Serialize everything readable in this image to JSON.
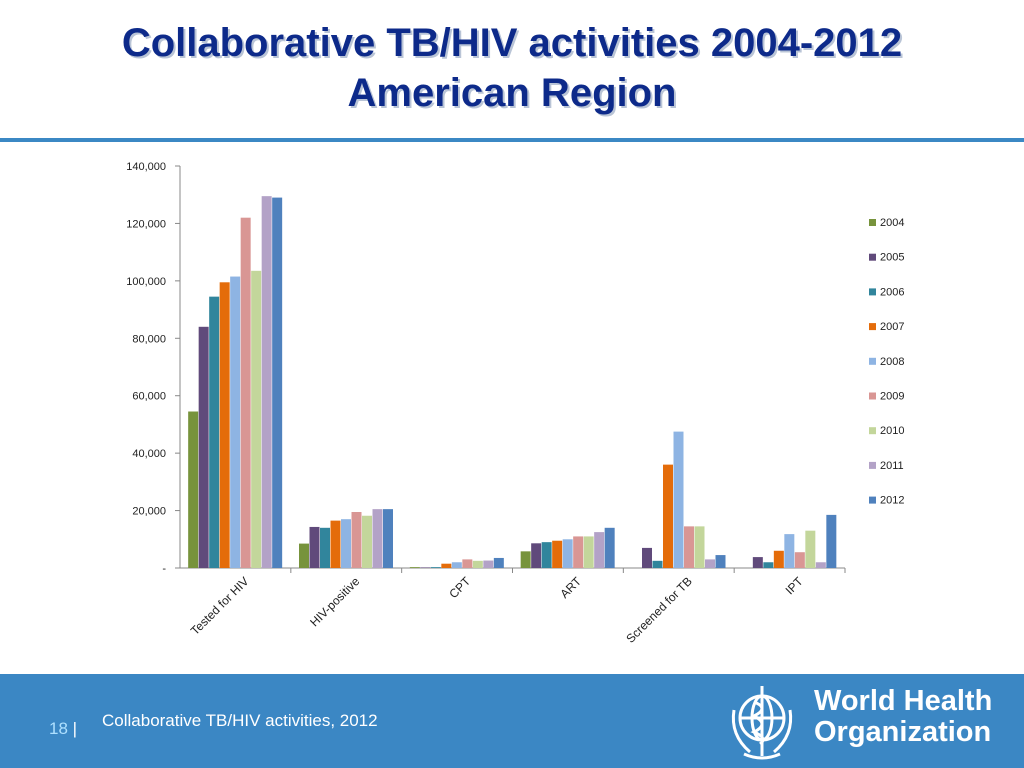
{
  "slide": {
    "title_line1": "Collaborative TB/HIV activities 2004-2012",
    "title_line2": "American Region"
  },
  "footer": {
    "page_number": "18",
    "separator": "|",
    "text": "Collaborative TB/HIV activities, 2012",
    "org_line1": "World Health",
    "org_line2": "Organization",
    "colors": {
      "band": "#3b87c4"
    }
  },
  "chart_data": {
    "type": "bar",
    "title": "",
    "xlabel": "",
    "ylabel": "",
    "ylim": [
      0,
      140000
    ],
    "y_ticks": [
      0,
      20000,
      40000,
      60000,
      80000,
      100000,
      120000,
      140000
    ],
    "y_tick_labels": [
      "-",
      "20,000",
      "40,000",
      "60,000",
      "80,000",
      "100,000",
      "120,000",
      "140,000"
    ],
    "grid": false,
    "legend_position": "right",
    "categories": [
      "Tested for HIV",
      "HIV-positive",
      "CPT",
      "ART",
      "Screened for TB",
      "IPT"
    ],
    "series": [
      {
        "name": "2004",
        "color": "#77933c",
        "values": [
          54500,
          8500,
          300,
          5800,
          0,
          0
        ]
      },
      {
        "name": "2005",
        "color": "#604a7b",
        "values": [
          84000,
          14300,
          200,
          8600,
          7000,
          3800
        ]
      },
      {
        "name": "2006",
        "color": "#31859c",
        "values": [
          94500,
          14000,
          300,
          9000,
          2500,
          2000
        ]
      },
      {
        "name": "2007",
        "color": "#e46c0a",
        "values": [
          99500,
          16500,
          1500,
          9500,
          36000,
          6000
        ]
      },
      {
        "name": "2008",
        "color": "#8eb4e3",
        "values": [
          101500,
          17000,
          2000,
          10000,
          47500,
          11800
        ]
      },
      {
        "name": "2009",
        "color": "#d99694",
        "values": [
          122000,
          19500,
          3000,
          11000,
          14500,
          5500
        ]
      },
      {
        "name": "2010",
        "color": "#c3d69b",
        "values": [
          103500,
          18200,
          2500,
          11000,
          14500,
          13000
        ]
      },
      {
        "name": "2011",
        "color": "#b3a2c7",
        "values": [
          129500,
          20500,
          2600,
          12500,
          3000,
          2000
        ]
      },
      {
        "name": "2012",
        "color": "#4f81bd",
        "values": [
          129000,
          20500,
          3500,
          14000,
          4500,
          18500
        ]
      }
    ]
  }
}
